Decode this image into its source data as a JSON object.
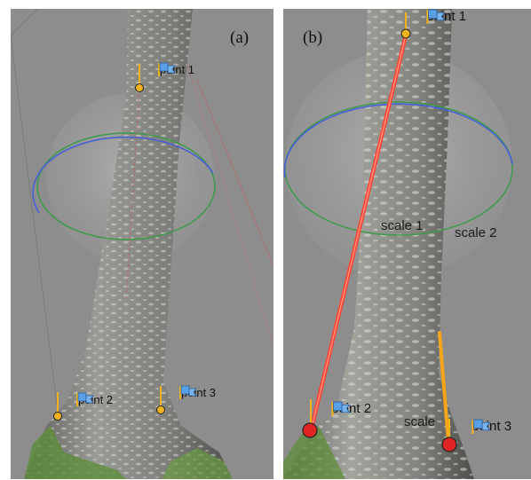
{
  "panels": [
    {
      "label": "(a)",
      "points": [
        "point 1",
        "point 2",
        "point 3"
      ]
    },
    {
      "label": "(b)",
      "points": [
        "point 1",
        "point 2",
        "point 3"
      ],
      "scales": [
        "scale 1",
        "scale 2",
        "scale"
      ]
    }
  ],
  "colors": {
    "background": "#8d8d8d",
    "point_marker_small": "#f2b21c",
    "point_marker_large": "#e02424",
    "scale_bar_1": "#ff4433",
    "scale_bar_2": "#f5a51a",
    "gizmo_ring_blue": "#4a5fd8",
    "gizmo_ring_green": "#3d9a4a",
    "flag_blue": "#5aa0e6"
  },
  "icons": [
    "flag-icon",
    "point-marker-icon"
  ]
}
